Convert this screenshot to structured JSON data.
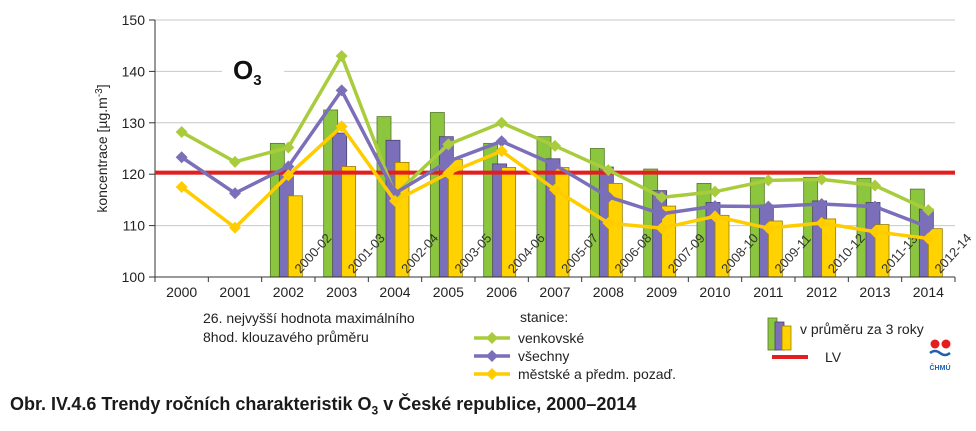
{
  "chart_data": {
    "type": "bar",
    "title": "O",
    "title_sub": "3",
    "ylabel": "koncentrace [µg.m",
    "ylabel_sup": "-3",
    "ylabel_tail": "]",
    "ylim": [
      100,
      150
    ],
    "yticks": [
      100,
      110,
      120,
      130,
      140,
      150
    ],
    "grid": true,
    "x": [
      "2000",
      "2001",
      "2002",
      "2003",
      "2004",
      "2005",
      "2006",
      "2007",
      "2008",
      "2009",
      "2010",
      "2011",
      "2012",
      "2013",
      "2014"
    ],
    "bar_labels": [
      "2000-02",
      "2001-03",
      "2002-04",
      "2003-05",
      "2004-06",
      "2005-07",
      "2006-08",
      "2007-09",
      "2008-10",
      "2009-11",
      "2010-12",
      "2011-13",
      "2012-14"
    ],
    "bar_series": [
      {
        "name": "venkovské",
        "color": "#8cc63f",
        "values": [
          126.0,
          132.5,
          131.2,
          132.0,
          126.0,
          127.3,
          125.0,
          121.0,
          118.2,
          119.3,
          119.4,
          119.2,
          117.1
        ]
      },
      {
        "name": "všechny",
        "color": "#7b6fba",
        "values": [
          120.8,
          128.0,
          126.6,
          127.3,
          122.0,
          123.0,
          121.4,
          116.8,
          114.5,
          114.0,
          114.8,
          114.5,
          113.2
        ]
      },
      {
        "name": "městské a předm. pozaď.",
        "color": "#ffd200",
        "values": [
          115.8,
          121.5,
          122.3,
          122.9,
          121.3,
          121.3,
          118.2,
          113.8,
          112.0,
          110.9,
          111.3,
          110.2,
          109.4
        ]
      }
    ],
    "series": [
      {
        "name": "venkovské",
        "color": "#a8cc3c",
        "values": [
          128.2,
          122.4,
          125.2,
          143.0,
          116.0,
          125.8,
          130.0,
          125.5,
          120.8,
          115.5,
          116.6,
          118.8,
          119.0,
          117.8,
          113.0
        ]
      },
      {
        "name": "všechny",
        "color": "#7b6fba",
        "values": [
          123.3,
          116.3,
          121.5,
          136.3,
          116.3,
          122.5,
          126.4,
          121.8,
          115.6,
          112.3,
          113.8,
          113.7,
          114.2,
          113.7,
          109.7
        ]
      },
      {
        "name": "městské a předm. pozaď.",
        "color": "#ffcc00",
        "values": [
          117.5,
          109.6,
          119.8,
          129.3,
          114.8,
          120.2,
          124.5,
          117.0,
          110.5,
          109.5,
          111.8,
          109.5,
          110.5,
          108.8,
          107.5
        ]
      }
    ],
    "limit": {
      "name": "LV",
      "value": 120.3,
      "color": "#e41e1e"
    },
    "annotation_lines": [
      "26. nejvyšší hodnota maximálního",
      "8hod. klouzavého průměru"
    ],
    "legend_title": "stanice:",
    "bar_legend_label": "v průměru za 3 roky",
    "logo_text": "ČHMÚ"
  },
  "caption": {
    "prefix": "Obr. IV.4.6  Trendy ročních charakteristik O",
    "sub": "3",
    "suffix": " v České republice, 2000–2014"
  }
}
